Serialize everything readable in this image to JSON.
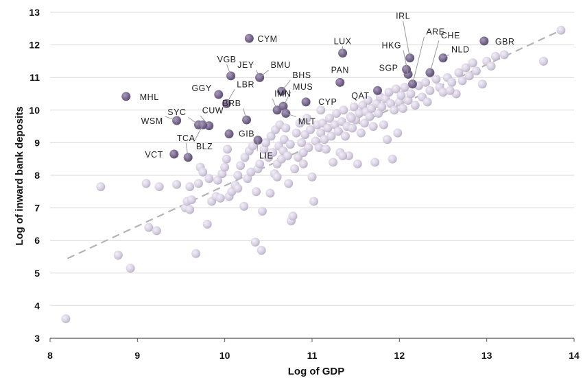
{
  "chart_data": {
    "type": "scatter",
    "xlabel": "Log of GDP",
    "ylabel": "Log of inward bank deposits",
    "xlim": [
      8,
      14
    ],
    "ylim": [
      3,
      13
    ],
    "xticks": [
      "8",
      "9",
      "10",
      "11",
      "12",
      "13",
      "14"
    ],
    "yticks": [
      "3",
      "4",
      "5",
      "6",
      "7",
      "8",
      "9",
      "10",
      "11",
      "12",
      "13"
    ],
    "grid": "horizontal",
    "trendline": {
      "style": "dashed",
      "from": [
        8.2,
        5.45
      ],
      "to": [
        13.85,
        12.45
      ]
    },
    "colors": {
      "highlight": "#8a7a9e",
      "other": "#d8d0e2",
      "trend": "#b3b3b3",
      "grid": "#d9d9d9"
    },
    "labeled_points": [
      {
        "label": "CYM",
        "x": 10.28,
        "y": 12.2
      },
      {
        "label": "LUX",
        "x": 11.35,
        "y": 11.75
      },
      {
        "label": "IRL",
        "x": 12.12,
        "y": 11.6
      },
      {
        "label": "ARE",
        "x": 12.15,
        "y": 10.8
      },
      {
        "label": "CHE",
        "x": 12.35,
        "y": 11.15
      },
      {
        "label": "NLD",
        "x": 12.5,
        "y": 11.6
      },
      {
        "label": "GBR",
        "x": 12.97,
        "y": 12.12
      },
      {
        "label": "HKG",
        "x": 12.1,
        "y": 11.1
      },
      {
        "label": "SGP",
        "x": 12.08,
        "y": 11.25
      },
      {
        "label": "PAN",
        "x": 11.32,
        "y": 10.85
      },
      {
        "label": "QAT",
        "x": 11.75,
        "y": 10.6
      },
      {
        "label": "VGB",
        "x": 10.07,
        "y": 11.05
      },
      {
        "label": "JEY",
        "x": 10.4,
        "y": 11.0
      },
      {
        "label": "BMU",
        "x": 10.4,
        "y": 11.0
      },
      {
        "label": "GGY",
        "x": 9.93,
        "y": 10.48
      },
      {
        "label": "LBR",
        "x": 10.02,
        "y": 10.2
      },
      {
        "label": "BHS",
        "x": 10.65,
        "y": 10.58
      },
      {
        "label": "IMN",
        "x": 10.6,
        "y": 10.0
      },
      {
        "label": "MUS",
        "x": 10.67,
        "y": 10.12
      },
      {
        "label": "CYP",
        "x": 10.93,
        "y": 10.25
      },
      {
        "label": "MHL",
        "x": 8.87,
        "y": 10.42
      },
      {
        "label": "SYC",
        "x": 9.7,
        "y": 9.55
      },
      {
        "label": "CUW",
        "x": 9.82,
        "y": 9.52
      },
      {
        "label": "WSM",
        "x": 9.45,
        "y": 9.68
      },
      {
        "label": "BRB",
        "x": 10.25,
        "y": 9.7
      },
      {
        "label": "MLT",
        "x": 10.7,
        "y": 9.9
      },
      {
        "label": "GIB",
        "x": 10.05,
        "y": 9.27
      },
      {
        "label": "BLZ",
        "x": 9.75,
        "y": 9.55
      },
      {
        "label": "TCA",
        "x": 9.58,
        "y": 8.55
      },
      {
        "label": "VCT",
        "x": 9.42,
        "y": 8.65
      },
      {
        "label": "LIE",
        "x": 10.38,
        "y": 9.08
      }
    ],
    "other_points": [
      [
        8.18,
        3.6
      ],
      [
        8.58,
        7.65
      ],
      [
        8.78,
        5.55
      ],
      [
        8.92,
        5.15
      ],
      [
        9.1,
        7.75
      ],
      [
        9.13,
        6.4
      ],
      [
        9.22,
        6.3
      ],
      [
        9.25,
        7.65
      ],
      [
        9.45,
        7.72
      ],
      [
        9.55,
        7.0
      ],
      [
        9.57,
        7.2
      ],
      [
        9.6,
        6.95
      ],
      [
        9.62,
        7.25
      ],
      [
        9.67,
        5.6
      ],
      [
        9.7,
        7.75
      ],
      [
        9.72,
        8.25
      ],
      [
        9.75,
        8.1
      ],
      [
        9.8,
        6.5
      ],
      [
        9.82,
        7.9
      ],
      [
        9.85,
        7.2
      ],
      [
        9.9,
        7.35
      ],
      [
        9.92,
        7.85
      ],
      [
        9.97,
        8.05
      ],
      [
        10.0,
        8.25
      ],
      [
        10.02,
        8.5
      ],
      [
        10.03,
        8.8
      ],
      [
        10.05,
        7.35
      ],
      [
        10.08,
        7.5
      ],
      [
        10.12,
        7.7
      ],
      [
        10.15,
        8.0
      ],
      [
        10.18,
        8.3
      ],
      [
        10.22,
        7.05
      ],
      [
        10.23,
        8.55
      ],
      [
        10.26,
        7.9
      ],
      [
        10.28,
        8.75
      ],
      [
        10.3,
        8.1
      ],
      [
        10.32,
        8.9
      ],
      [
        10.35,
        5.95
      ],
      [
        10.36,
        7.5
      ],
      [
        10.38,
        8.2
      ],
      [
        10.4,
        8.35
      ],
      [
        10.42,
        5.7
      ],
      [
        10.43,
        6.9
      ],
      [
        10.45,
        8.8
      ],
      [
        10.47,
        9.0
      ],
      [
        10.5,
        8.55
      ],
      [
        10.52,
        7.45
      ],
      [
        10.53,
        9.2
      ],
      [
        10.55,
        8.7
      ],
      [
        10.57,
        8.05
      ],
      [
        10.58,
        9.4
      ],
      [
        10.6,
        8.35
      ],
      [
        10.62,
        8.9
      ],
      [
        10.63,
        9.55
      ],
      [
        10.65,
        8.5
      ],
      [
        10.67,
        8.75
      ],
      [
        10.68,
        9.1
      ],
      [
        10.7,
        9.45
      ],
      [
        10.72,
        8.6
      ],
      [
        10.73,
        7.75
      ],
      [
        10.75,
        8.95
      ],
      [
        10.76,
        6.6
      ],
      [
        10.78,
        6.75
      ],
      [
        10.8,
        8.2
      ],
      [
        10.82,
        9.3
      ],
      [
        10.84,
        8.55
      ],
      [
        10.86,
        9.6
      ],
      [
        10.88,
        9.0
      ],
      [
        10.9,
        8.7
      ],
      [
        10.92,
        9.25
      ],
      [
        10.94,
        9.75
      ],
      [
        10.96,
        8.85
      ],
      [
        10.98,
        9.4
      ],
      [
        11.0,
        7.95
      ],
      [
        11.02,
        7.2
      ],
      [
        11.04,
        9.05
      ],
      [
        11.06,
        9.55
      ],
      [
        11.08,
        8.85
      ],
      [
        11.1,
        9.3
      ],
      [
        11.12,
        9.6
      ],
      [
        11.14,
        9.1
      ],
      [
        11.16,
        8.8
      ],
      [
        11.18,
        9.45
      ],
      [
        11.2,
        9.75
      ],
      [
        11.22,
        9.2
      ],
      [
        11.24,
        8.4
      ],
      [
        11.26,
        9.55
      ],
      [
        11.28,
        9.9
      ],
      [
        11.3,
        9.35
      ],
      [
        11.32,
        8.7
      ],
      [
        11.34,
        9.65
      ],
      [
        11.36,
        10.0
      ],
      [
        11.38,
        9.2
      ],
      [
        11.4,
        9.5
      ],
      [
        11.42,
        8.6
      ],
      [
        11.44,
        9.8
      ],
      [
        11.46,
        9.45
      ],
      [
        11.48,
        10.1
      ],
      [
        11.5,
        9.7
      ],
      [
        11.52,
        8.35
      ],
      [
        11.54,
        9.9
      ],
      [
        11.56,
        9.3
      ],
      [
        11.58,
        10.15
      ],
      [
        11.6,
        9.6
      ],
      [
        11.62,
        9.95
      ],
      [
        11.64,
        10.3
      ],
      [
        11.66,
        9.8
      ],
      [
        11.68,
        10.05
      ],
      [
        11.7,
        9.5
      ],
      [
        11.72,
        8.4
      ],
      [
        11.74,
        10.2
      ],
      [
        11.76,
        9.9
      ],
      [
        11.78,
        10.4
      ],
      [
        11.8,
        10.1
      ],
      [
        11.82,
        9.55
      ],
      [
        11.84,
        10.35
      ],
      [
        11.86,
        9.1
      ],
      [
        11.88,
        10.55
      ],
      [
        11.9,
        10.2
      ],
      [
        11.92,
        8.5
      ],
      [
        11.94,
        10.0
      ],
      [
        11.96,
        10.65
      ],
      [
        11.98,
        9.3
      ],
      [
        12.0,
        10.25
      ],
      [
        12.02,
        10.45
      ],
      [
        12.04,
        10.05
      ],
      [
        12.06,
        10.7
      ],
      [
        12.1,
        10.3
      ],
      [
        12.13,
        10.5
      ],
      [
        12.18,
        10.15
      ],
      [
        12.22,
        10.75
      ],
      [
        12.26,
        10.4
      ],
      [
        12.3,
        10.85
      ],
      [
        12.35,
        10.6
      ],
      [
        12.42,
        10.95
      ],
      [
        12.46,
        10.7
      ],
      [
        12.5,
        10.55
      ],
      [
        12.55,
        11.0
      ],
      [
        12.6,
        10.85
      ],
      [
        12.65,
        10.5
      ],
      [
        12.68,
        11.15
      ],
      [
        12.72,
        10.9
      ],
      [
        12.76,
        11.3
      ],
      [
        12.8,
        11.05
      ],
      [
        12.84,
        11.45
      ],
      [
        12.88,
        11.2
      ],
      [
        12.95,
        10.8
      ],
      [
        13.0,
        11.5
      ],
      [
        13.05,
        11.35
      ],
      [
        13.1,
        11.65
      ],
      [
        13.2,
        11.7
      ],
      [
        13.65,
        11.5
      ],
      [
        13.85,
        12.45
      ],
      [
        12.58,
        10.6
      ],
      [
        12.32,
        10.25
      ],
      [
        11.45,
        9.75
      ],
      [
        11.1,
        10.0
      ],
      [
        11.35,
        8.6
      ],
      [
        10.9,
        8.35
      ],
      [
        10.6,
        7.95
      ],
      [
        10.15,
        7.6
      ],
      [
        9.95,
        7.3
      ],
      [
        9.6,
        7.65
      ]
    ]
  }
}
